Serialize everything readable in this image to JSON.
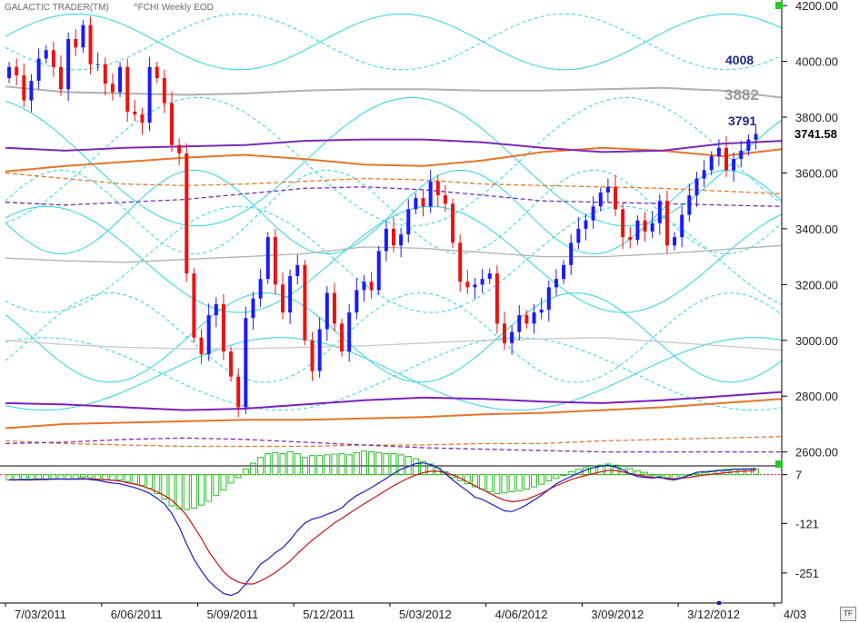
{
  "header": {
    "app": "GALACTIC TRADER(TM)",
    "symbol": "^FCHI Weekly EOD"
  },
  "last_price": "3741.58",
  "annotations": [
    {
      "label": "4008",
      "value": 4008,
      "color": "#1b2a8a"
    },
    {
      "label": "3882",
      "value": 3882,
      "color": "#9a9a9a"
    },
    {
      "label": "3791",
      "value": 3791,
      "color": "#1b2a8a"
    }
  ],
  "tf_label": "TF",
  "chart_data": [
    {
      "type": "candlestick",
      "title": "",
      "ylim": [
        2550,
        4220
      ],
      "y_ticks": [
        "4200.00",
        "4000.00",
        "3800.00",
        "3600.00",
        "3400.00",
        "3200.00",
        "3000.00",
        "2800.00",
        "2600.00"
      ],
      "x_tick_labels": [
        "7/03/2011",
        "6/06/2011",
        "5/09/2011",
        "5/12/2011",
        "5/03/2012",
        "4/06/2012",
        "3/09/2012",
        "3/12/2012",
        "4/03"
      ],
      "x_tick_index": [
        0,
        13,
        26,
        39,
        52,
        65,
        78,
        91,
        104
      ],
      "up_color": "#1a1aff",
      "down_color": "#ee1111",
      "closes": [
        3980,
        3950,
        3860,
        3930,
        4010,
        4040,
        3980,
        3900,
        4080,
        4050,
        4130,
        3990,
        3990,
        3920,
        3890,
        3980,
        3820,
        3810,
        3780,
        3980,
        3940,
        3850,
        3700,
        3670,
        3240,
        3010,
        2950,
        3090,
        3130,
        2960,
        2870,
        2760,
        3080,
        3150,
        3220,
        3370,
        3200,
        3100,
        3230,
        3270,
        3000,
        2890,
        3040,
        3170,
        3060,
        2960,
        3100,
        3180,
        3210,
        3180,
        3320,
        3400,
        3340,
        3380,
        3470,
        3510,
        3480,
        3570,
        3520,
        3490,
        3350,
        3210,
        3190,
        3200,
        3220,
        3240,
        3060,
        2990,
        3030,
        3090,
        3060,
        3100,
        3110,
        3190,
        3220,
        3270,
        3350,
        3400,
        3430,
        3480,
        3530,
        3550,
        3470,
        3370,
        3360,
        3430,
        3390,
        3420,
        3500,
        3340,
        3370,
        3450,
        3520,
        3580,
        3610,
        3660,
        3690,
        3610,
        3650,
        3680,
        3720,
        3740
      ],
      "overlays": [
        {
          "name": "Orange arc upper",
          "color": "#e8742a",
          "y": [
            3605,
            3625,
            3640,
            3655,
            3665,
            3650,
            3630,
            3625,
            3645,
            3675,
            3690,
            3680,
            3660,
            3685
          ]
        },
        {
          "name": "Orange arc dashed",
          "color": "#e87820",
          "y": [
            3600,
            3580,
            3560,
            3555,
            3560,
            3570,
            3580,
            3575,
            3560,
            3555,
            3550,
            3545,
            3535,
            3525
          ]
        },
        {
          "name": "Purple band upper",
          "color": "#7a2ab8",
          "y": [
            3690,
            3680,
            3690,
            3695,
            3700,
            3715,
            3720,
            3720,
            3710,
            3690,
            3675,
            3680,
            3705,
            3715
          ]
        },
        {
          "name": "Purple band dashed",
          "color": "#7a2ab8",
          "y": [
            3495,
            3485,
            3495,
            3505,
            3525,
            3545,
            3550,
            3540,
            3520,
            3500,
            3495,
            3490,
            3485,
            3480
          ]
        },
        {
          "name": "Gray mid band",
          "color": "#b0b0b0",
          "y": [
            3295,
            3285,
            3280,
            3290,
            3300,
            3310,
            3335,
            3330,
            3315,
            3300,
            3300,
            3310,
            3325,
            3340
          ]
        },
        {
          "name": "Gray upper band",
          "color": "#b0b0b0",
          "y": [
            3910,
            3890,
            3885,
            3880,
            3885,
            3895,
            3900,
            3900,
            3895,
            3895,
            3900,
            3905,
            3895,
            3870
          ]
        },
        {
          "name": "Gray lower band",
          "color": "#c8c8c8",
          "y": [
            3000,
            2985,
            2975,
            2970,
            2970,
            2975,
            2980,
            2990,
            3000,
            3005,
            3010,
            2995,
            2980,
            2965
          ]
        },
        {
          "name": "Purple low band",
          "color": "#7a20c0",
          "y": [
            2775,
            2770,
            2760,
            2750,
            2755,
            2770,
            2785,
            2795,
            2790,
            2780,
            2775,
            2785,
            2800,
            2815
          ]
        },
        {
          "name": "Orange low band",
          "color": "#e8742a",
          "y": [
            2685,
            2700,
            2705,
            2710,
            2715,
            2715,
            2720,
            2725,
            2735,
            2740,
            2750,
            2760,
            2775,
            2790
          ]
        },
        {
          "name": "Orange low dashed",
          "color": "#e8742a",
          "y": [
            2640,
            2630,
            2625,
            2620,
            2620,
            2620,
            2625,
            2625,
            2630,
            2630,
            2640,
            2645,
            2650,
            2655
          ]
        },
        {
          "name": "Purple low dashed",
          "color": "#7a2ab8",
          "y": [
            2630,
            2635,
            2645,
            2650,
            2645,
            2635,
            2625,
            2615,
            2610,
            2605,
            2600,
            2600,
            2600,
            2600
          ]
        }
      ],
      "cyan_waves": [
        {
          "base": 4070,
          "amp": 100,
          "period": 44,
          "phase": 0.2
        },
        {
          "base": 3640,
          "amp": 230,
          "period": 58,
          "phase": 1.9
        },
        {
          "base": 3460,
          "amp": 150,
          "period": 36,
          "phase": 3.4
        },
        {
          "base": 3290,
          "amp": 190,
          "period": 52,
          "phase": 0.9
        },
        {
          "base": 3010,
          "amp": 160,
          "period": 42,
          "phase": 2.6
        },
        {
          "base": 2880,
          "amp": 130,
          "period": 64,
          "phase": 4.2
        }
      ]
    },
    {
      "type": "macd",
      "y_ticks": [
        "7",
        "-121",
        "-251"
      ],
      "ylim": [
        -330,
        30
      ],
      "macd_color": "#1a1acc",
      "signal_color": "#cc1111",
      "hist_color": "#22c222",
      "macd": [
        -7,
        -7,
        -6,
        -6,
        -5,
        -5,
        -4,
        -4,
        -5,
        -4,
        -3,
        -6,
        -8,
        -12,
        -15,
        -17,
        -22,
        -27,
        -34,
        -42,
        -55,
        -70,
        -95,
        -130,
        -175,
        -215,
        -245,
        -272,
        -290,
        -305,
        -310,
        -302,
        -280,
        -255,
        -228,
        -215,
        -198,
        -185,
        -165,
        -140,
        -120,
        -110,
        -105,
        -97,
        -90,
        -80,
        -62,
        -48,
        -38,
        -27,
        -15,
        -3,
        10,
        21,
        28,
        36,
        38,
        33,
        25,
        10,
        -7,
        -22,
        -36,
        -52,
        -58,
        -68,
        -78,
        -88,
        -90,
        -82,
        -72,
        -60,
        -47,
        -32,
        -17,
        -7,
        2,
        11,
        19,
        25,
        29,
        32,
        27,
        20,
        9,
        2,
        0,
        -2,
        1,
        -5,
        -7,
        -2,
        6,
        13,
        15,
        15,
        18,
        18,
        21,
        22,
        22,
        23
      ],
      "signal": [
        -6,
        -6,
        -7,
        -7,
        -6,
        -6,
        -5,
        -5,
        -5,
        -5,
        -5,
        -4,
        -5,
        -6,
        -8,
        -10,
        -14,
        -18,
        -23,
        -30,
        -38,
        -48,
        -60,
        -78,
        -100,
        -130,
        -160,
        -195,
        -222,
        -248,
        -265,
        -275,
        -280,
        -280,
        -272,
        -262,
        -250,
        -235,
        -220,
        -200,
        -182,
        -165,
        -150,
        -135,
        -120,
        -108,
        -95,
        -82,
        -70,
        -58,
        -46,
        -34,
        -22,
        -12,
        -2,
        6,
        12,
        16,
        16,
        12,
        6,
        -2,
        -12,
        -22,
        -32,
        -42,
        -52,
        -60,
        -64,
        -62,
        -58,
        -50,
        -42,
        -32,
        -22,
        -14,
        -6,
        0,
        5,
        10,
        14,
        18,
        18,
        14,
        10,
        6,
        3,
        1,
        -1,
        -3,
        -4,
        -2,
        0,
        3,
        6,
        8,
        10,
        12,
        14,
        16,
        17,
        18
      ],
      "hist": [
        -14,
        -14,
        -12,
        -12,
        -11,
        -11,
        -11,
        -11,
        -11,
        -11,
        -6,
        -8,
        -12,
        -14,
        -15,
        -14,
        -18,
        -24,
        -28,
        -36,
        -50,
        -64,
        -82,
        -90,
        -92,
        -88,
        -80,
        -70,
        -55,
        -40,
        -22,
        -8,
        15,
        30,
        45,
        55,
        58,
        55,
        60,
        55,
        45,
        50,
        50,
        52,
        54,
        55,
        52,
        58,
        62,
        60,
        58,
        55,
        55,
        52,
        48,
        42,
        35,
        28,
        18,
        8,
        -8,
        -16,
        -24,
        -32,
        -38,
        -45,
        -50,
        -48,
        -45,
        -42,
        -38,
        -32,
        -25,
        -16,
        -10,
        -2,
        8,
        14,
        18,
        22,
        25,
        28,
        25,
        22,
        16,
        10,
        6,
        1,
        -4,
        -8,
        -10,
        -6,
        -2,
        2,
        5,
        10,
        12,
        14,
        15,
        14,
        15,
        14
      ]
    }
  ]
}
